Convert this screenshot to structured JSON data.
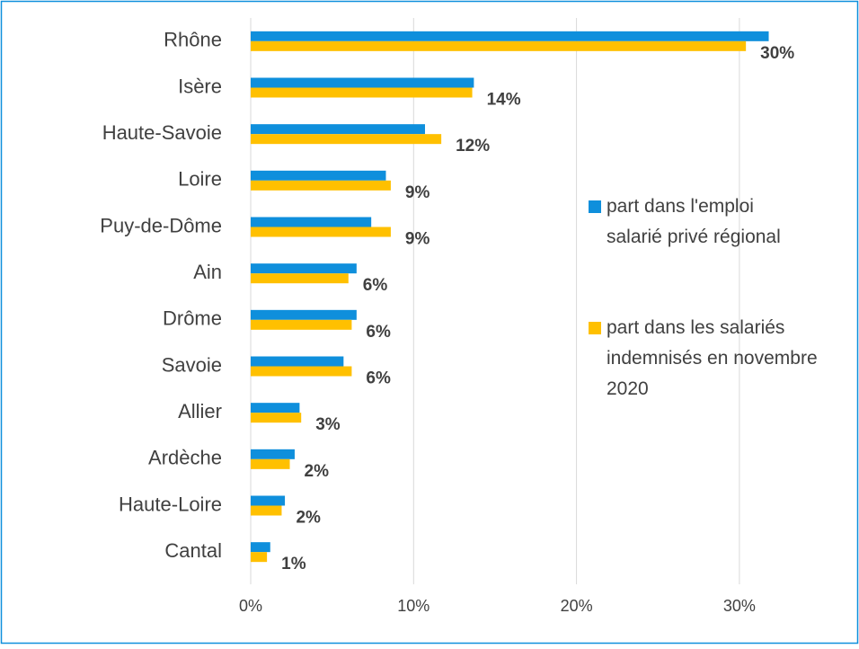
{
  "chart_data": {
    "type": "bar",
    "orientation": "horizontal",
    "categories": [
      "Rhône",
      "Isère",
      "Haute-Savoie",
      "Loire",
      "Puy-de-Dôme",
      "Ain",
      "Drôme",
      "Savoie",
      "Allier",
      "Ardèche",
      "Haute-Loire",
      "Cantal"
    ],
    "series": [
      {
        "name": "part dans l'emploi salarié privé régional",
        "color": "#0f8fdc",
        "values": [
          31.8,
          13.7,
          10.7,
          8.3,
          7.4,
          6.5,
          6.5,
          5.7,
          3.0,
          2.7,
          2.1,
          1.2
        ]
      },
      {
        "name": "part dans les salariés indemnisés en novembre 2020",
        "color": "#ffc000",
        "values": [
          30.4,
          13.6,
          11.7,
          8.6,
          8.6,
          6.0,
          6.2,
          6.2,
          3.1,
          2.4,
          1.9,
          1.0
        ],
        "value_labels": [
          "30%",
          "14%",
          "12%",
          "9%",
          "9%",
          "6%",
          "6%",
          "6%",
          "3%",
          "2%",
          "2%",
          "1%"
        ]
      }
    ],
    "xlim": [
      0,
      35
    ],
    "xticks": [
      {
        "value": 0,
        "label": "0%"
      },
      {
        "value": 10,
        "label": "10%"
      },
      {
        "value": 20,
        "label": "20%"
      },
      {
        "value": 30,
        "label": "30%"
      }
    ],
    "grid": true,
    "legend": "right"
  }
}
